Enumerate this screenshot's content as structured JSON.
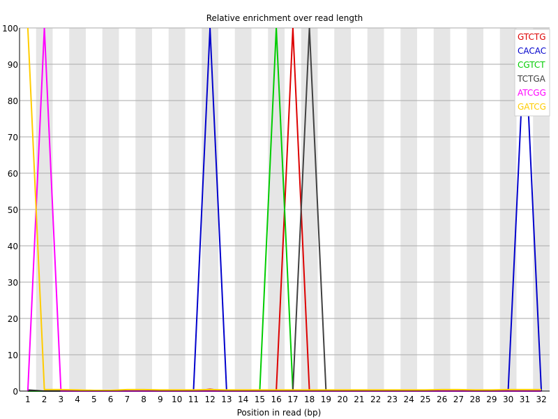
{
  "chart_data": {
    "type": "line",
    "title": "Relative enrichment over read length",
    "xlabel": "Position in read (bp)",
    "ylabel": "",
    "x": [
      1,
      2,
      3,
      4,
      5,
      6,
      7,
      8,
      9,
      10,
      11,
      12,
      13,
      14,
      15,
      16,
      17,
      18,
      19,
      20,
      21,
      22,
      23,
      24,
      25,
      26,
      27,
      28,
      29,
      30,
      31,
      32
    ],
    "ylim": [
      0,
      100
    ],
    "yticks": [
      0,
      10,
      20,
      30,
      40,
      50,
      60,
      70,
      80,
      90,
      100
    ],
    "grid": true,
    "legend_position": "top-right",
    "series": [
      {
        "name": "GTCTG",
        "color": "#dd0000",
        "values": [
          0,
          0,
          0,
          0,
          0,
          0,
          0,
          0,
          0,
          0,
          0,
          0.5,
          0,
          0,
          0,
          0,
          100,
          0,
          0,
          0,
          0,
          0,
          0,
          0,
          0,
          0,
          0,
          0,
          0,
          0,
          0,
          0
        ]
      },
      {
        "name": "CACAC",
        "color": "#0000cc",
        "values": [
          0,
          0,
          0,
          0,
          0,
          0,
          0,
          0,
          0,
          0,
          0,
          100,
          0,
          0,
          0,
          0,
          0,
          0,
          0,
          0,
          0,
          0,
          0,
          0,
          0,
          0,
          0,
          0,
          0,
          0.3,
          98.5,
          0
        ]
      },
      {
        "name": "CGTCT",
        "color": "#00cc00",
        "values": [
          0,
          0,
          0,
          0,
          0,
          0,
          0,
          0,
          0,
          0,
          0,
          0,
          0,
          0,
          0,
          100,
          0,
          0,
          0,
          0,
          0,
          0,
          0,
          0,
          0,
          0,
          0,
          0,
          0,
          0,
          0,
          0
        ]
      },
      {
        "name": "TCTGA",
        "color": "#404040",
        "values": [
          0.3,
          0,
          0,
          0,
          0,
          0,
          0,
          0,
          0,
          0,
          0,
          0,
          0,
          0,
          0,
          0,
          0,
          100,
          0,
          0,
          0,
          0,
          0,
          0,
          0,
          0,
          0,
          0,
          0,
          0,
          0,
          0
        ]
      },
      {
        "name": "ATCGG",
        "color": "#ff00ff",
        "values": [
          0,
          100,
          0,
          0,
          0,
          0,
          0,
          0,
          0,
          0,
          0,
          0,
          0,
          0,
          0,
          0,
          0,
          0,
          0,
          0,
          0,
          0,
          0,
          0,
          0,
          0,
          0,
          0,
          0,
          0,
          0,
          0
        ]
      },
      {
        "name": "GATCG",
        "color": "#ffcc00",
        "values": [
          100,
          0.4,
          0.4,
          0.3,
          0.2,
          0.2,
          0.4,
          0.4,
          0.3,
          0.3,
          0.3,
          0.4,
          0.3,
          0.3,
          0.3,
          0.3,
          0.3,
          0.3,
          0.3,
          0.3,
          0.3,
          0.3,
          0.3,
          0.3,
          0.3,
          0.4,
          0.4,
          0.3,
          0.3,
          0.4,
          0.4,
          0.4
        ]
      }
    ]
  }
}
